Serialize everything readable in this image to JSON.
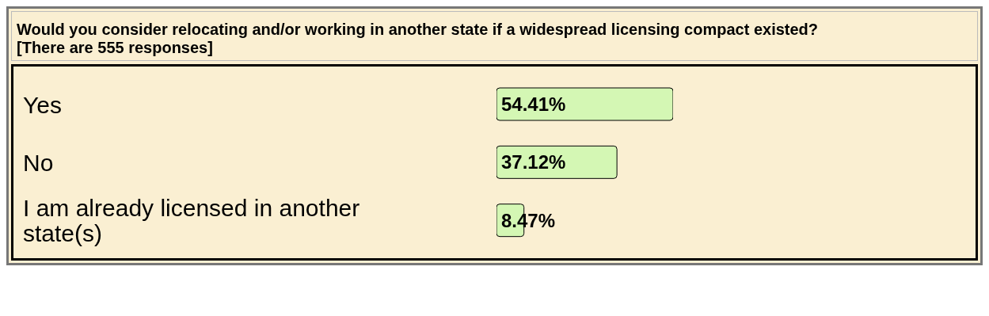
{
  "chart_data": {
    "type": "bar",
    "orientation": "horizontal",
    "title": "Would you consider relocating and/or working in another state if a widespread licensing compact existed?",
    "subtitle": "[There are 555 responses]",
    "categories": [
      "Yes",
      "No",
      "I am already licensed in another state(s)"
    ],
    "values": [
      54.41,
      37.12,
      8.47
    ],
    "value_labels": [
      "54.41%",
      "37.12%",
      "8.47%"
    ],
    "color": "#d4f7b4",
    "tick_labels": "y"
  }
}
